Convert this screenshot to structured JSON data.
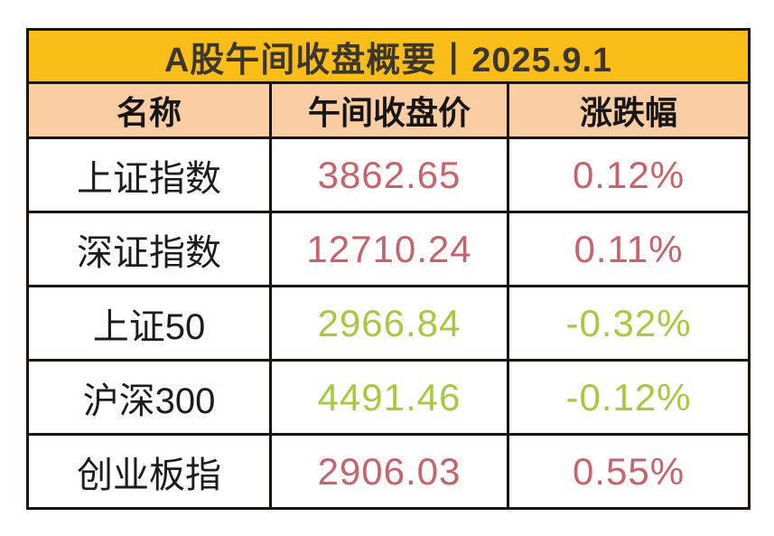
{
  "title": "A股午间收盘概要丨2025.9.1",
  "colors": {
    "title_bg": "#FBBD17",
    "header_bg": "#FACDA3",
    "up": "#C8636B",
    "down": "#A7C93E",
    "border": "#1A140A"
  },
  "table": {
    "headers": [
      "名称",
      "午间收盘价",
      "涨跌幅"
    ],
    "rows": [
      {
        "name": "上证指数",
        "price": "3862.65",
        "change": "0.12%",
        "direction": "up"
      },
      {
        "name": "深证指数",
        "price": "12710.24",
        "change": "0.11%",
        "direction": "up"
      },
      {
        "name": "上证50",
        "price": "2966.84",
        "change": "-0.32%",
        "direction": "down"
      },
      {
        "name": "沪深300",
        "price": "4491.46",
        "change": "-0.12%",
        "direction": "down"
      },
      {
        "name": "创业板指",
        "price": "2906.03",
        "change": "0.55%",
        "direction": "up"
      }
    ]
  },
  "chart_data": {
    "type": "table",
    "title": "A股午间收盘概要丨2025.9.1",
    "columns": [
      "名称",
      "午间收盘价",
      "涨跌幅"
    ],
    "rows": [
      [
        "上证指数",
        3862.65,
        "0.12%"
      ],
      [
        "深证指数",
        12710.24,
        "0.11%"
      ],
      [
        "上证50",
        2966.84,
        "-0.32%"
      ],
      [
        "沪深300",
        4491.46,
        "-0.12%"
      ],
      [
        "创业板指",
        2906.03,
        "0.55%"
      ]
    ],
    "notes": "positive changes shown in rose red, negative changes in yellow-green"
  }
}
